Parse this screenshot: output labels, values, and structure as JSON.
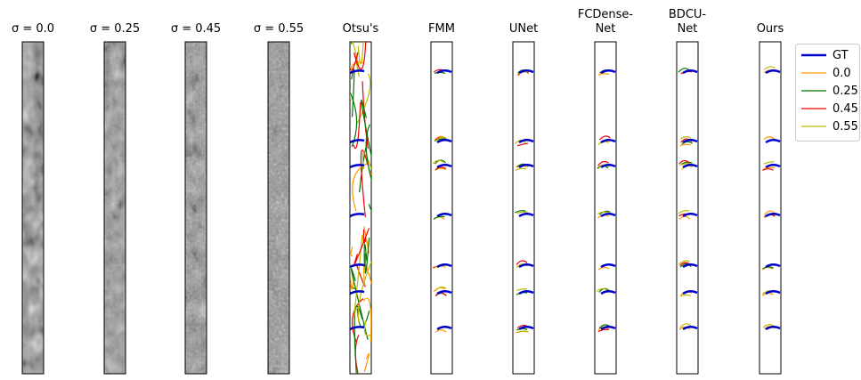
{
  "panels": [
    {
      "title_lines": [
        "σ = 0.0"
      ],
      "kind": "image"
    },
    {
      "title_lines": [
        "σ = 0.25"
      ],
      "kind": "image"
    },
    {
      "title_lines": [
        "σ = 0.45"
      ],
      "kind": "image"
    },
    {
      "title_lines": [
        "σ = 0.55"
      ],
      "kind": "image"
    },
    {
      "title_lines": [
        "Otsu's"
      ],
      "kind": "curves"
    },
    {
      "title_lines": [
        "FMM"
      ],
      "kind": "curves"
    },
    {
      "title_lines": [
        "UNet"
      ],
      "kind": "curves"
    },
    {
      "title_lines": [
        "FCDense-",
        "Net"
      ],
      "kind": "curves"
    },
    {
      "title_lines": [
        "BDCU-",
        "Net"
      ],
      "kind": "curves"
    },
    {
      "title_lines": [
        "Ours"
      ],
      "kind": "curves"
    }
  ],
  "legend": [
    {
      "label": "GT",
      "color": "#0000cc"
    },
    {
      "label": "0.0",
      "color": "#ff9900"
    },
    {
      "label": "0.25",
      "color": "#007700"
    },
    {
      "label": "0.45",
      "color": "#ee0000"
    },
    {
      "label": "0.55",
      "color": "#bbbb00"
    }
  ]
}
